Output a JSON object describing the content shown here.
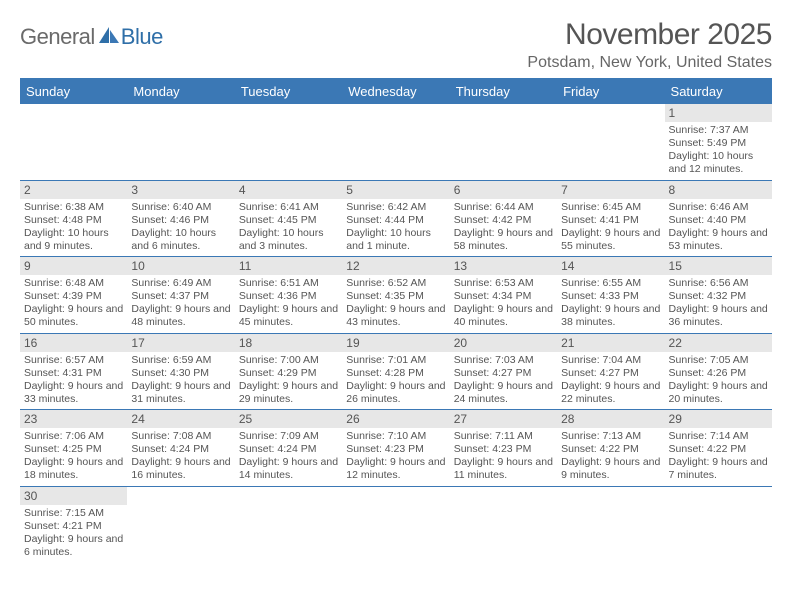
{
  "logo": {
    "word_a": "General",
    "word_b": "Blue"
  },
  "title": "November 2025",
  "subtitle": "Potsdam, New York, United States",
  "colors": {
    "header_bg": "#3b78b5",
    "daynum_bg": "#e7e7e7",
    "text": "#555555",
    "logo_gray": "#6a6a6a",
    "logo_blue": "#2f6fa8"
  },
  "typography": {
    "title_fontsize": 30,
    "subtitle_fontsize": 16,
    "header_fontsize": 13,
    "daynum_fontsize": 12,
    "body_fontsize": 10.5
  },
  "day_headers": [
    "Sunday",
    "Monday",
    "Tuesday",
    "Wednesday",
    "Thursday",
    "Friday",
    "Saturday"
  ],
  "weeks": [
    [
      {
        "n": "",
        "sr": "",
        "ss": "",
        "dl": ""
      },
      {
        "n": "",
        "sr": "",
        "ss": "",
        "dl": ""
      },
      {
        "n": "",
        "sr": "",
        "ss": "",
        "dl": ""
      },
      {
        "n": "",
        "sr": "",
        "ss": "",
        "dl": ""
      },
      {
        "n": "",
        "sr": "",
        "ss": "",
        "dl": ""
      },
      {
        "n": "",
        "sr": "",
        "ss": "",
        "dl": ""
      },
      {
        "n": "1",
        "sr": "Sunrise: 7:37 AM",
        "ss": "Sunset: 5:49 PM",
        "dl": "Daylight: 10 hours and 12 minutes."
      }
    ],
    [
      {
        "n": "2",
        "sr": "Sunrise: 6:38 AM",
        "ss": "Sunset: 4:48 PM",
        "dl": "Daylight: 10 hours and 9 minutes."
      },
      {
        "n": "3",
        "sr": "Sunrise: 6:40 AM",
        "ss": "Sunset: 4:46 PM",
        "dl": "Daylight: 10 hours and 6 minutes."
      },
      {
        "n": "4",
        "sr": "Sunrise: 6:41 AM",
        "ss": "Sunset: 4:45 PM",
        "dl": "Daylight: 10 hours and 3 minutes."
      },
      {
        "n": "5",
        "sr": "Sunrise: 6:42 AM",
        "ss": "Sunset: 4:44 PM",
        "dl": "Daylight: 10 hours and 1 minute."
      },
      {
        "n": "6",
        "sr": "Sunrise: 6:44 AM",
        "ss": "Sunset: 4:42 PM",
        "dl": "Daylight: 9 hours and 58 minutes."
      },
      {
        "n": "7",
        "sr": "Sunrise: 6:45 AM",
        "ss": "Sunset: 4:41 PM",
        "dl": "Daylight: 9 hours and 55 minutes."
      },
      {
        "n": "8",
        "sr": "Sunrise: 6:46 AM",
        "ss": "Sunset: 4:40 PM",
        "dl": "Daylight: 9 hours and 53 minutes."
      }
    ],
    [
      {
        "n": "9",
        "sr": "Sunrise: 6:48 AM",
        "ss": "Sunset: 4:39 PM",
        "dl": "Daylight: 9 hours and 50 minutes."
      },
      {
        "n": "10",
        "sr": "Sunrise: 6:49 AM",
        "ss": "Sunset: 4:37 PM",
        "dl": "Daylight: 9 hours and 48 minutes."
      },
      {
        "n": "11",
        "sr": "Sunrise: 6:51 AM",
        "ss": "Sunset: 4:36 PM",
        "dl": "Daylight: 9 hours and 45 minutes."
      },
      {
        "n": "12",
        "sr": "Sunrise: 6:52 AM",
        "ss": "Sunset: 4:35 PM",
        "dl": "Daylight: 9 hours and 43 minutes."
      },
      {
        "n": "13",
        "sr": "Sunrise: 6:53 AM",
        "ss": "Sunset: 4:34 PM",
        "dl": "Daylight: 9 hours and 40 minutes."
      },
      {
        "n": "14",
        "sr": "Sunrise: 6:55 AM",
        "ss": "Sunset: 4:33 PM",
        "dl": "Daylight: 9 hours and 38 minutes."
      },
      {
        "n": "15",
        "sr": "Sunrise: 6:56 AM",
        "ss": "Sunset: 4:32 PM",
        "dl": "Daylight: 9 hours and 36 minutes."
      }
    ],
    [
      {
        "n": "16",
        "sr": "Sunrise: 6:57 AM",
        "ss": "Sunset: 4:31 PM",
        "dl": "Daylight: 9 hours and 33 minutes."
      },
      {
        "n": "17",
        "sr": "Sunrise: 6:59 AM",
        "ss": "Sunset: 4:30 PM",
        "dl": "Daylight: 9 hours and 31 minutes."
      },
      {
        "n": "18",
        "sr": "Sunrise: 7:00 AM",
        "ss": "Sunset: 4:29 PM",
        "dl": "Daylight: 9 hours and 29 minutes."
      },
      {
        "n": "19",
        "sr": "Sunrise: 7:01 AM",
        "ss": "Sunset: 4:28 PM",
        "dl": "Daylight: 9 hours and 26 minutes."
      },
      {
        "n": "20",
        "sr": "Sunrise: 7:03 AM",
        "ss": "Sunset: 4:27 PM",
        "dl": "Daylight: 9 hours and 24 minutes."
      },
      {
        "n": "21",
        "sr": "Sunrise: 7:04 AM",
        "ss": "Sunset: 4:27 PM",
        "dl": "Daylight: 9 hours and 22 minutes."
      },
      {
        "n": "22",
        "sr": "Sunrise: 7:05 AM",
        "ss": "Sunset: 4:26 PM",
        "dl": "Daylight: 9 hours and 20 minutes."
      }
    ],
    [
      {
        "n": "23",
        "sr": "Sunrise: 7:06 AM",
        "ss": "Sunset: 4:25 PM",
        "dl": "Daylight: 9 hours and 18 minutes."
      },
      {
        "n": "24",
        "sr": "Sunrise: 7:08 AM",
        "ss": "Sunset: 4:24 PM",
        "dl": "Daylight: 9 hours and 16 minutes."
      },
      {
        "n": "25",
        "sr": "Sunrise: 7:09 AM",
        "ss": "Sunset: 4:24 PM",
        "dl": "Daylight: 9 hours and 14 minutes."
      },
      {
        "n": "26",
        "sr": "Sunrise: 7:10 AM",
        "ss": "Sunset: 4:23 PM",
        "dl": "Daylight: 9 hours and 12 minutes."
      },
      {
        "n": "27",
        "sr": "Sunrise: 7:11 AM",
        "ss": "Sunset: 4:23 PM",
        "dl": "Daylight: 9 hours and 11 minutes."
      },
      {
        "n": "28",
        "sr": "Sunrise: 7:13 AM",
        "ss": "Sunset: 4:22 PM",
        "dl": "Daylight: 9 hours and 9 minutes."
      },
      {
        "n": "29",
        "sr": "Sunrise: 7:14 AM",
        "ss": "Sunset: 4:22 PM",
        "dl": "Daylight: 9 hours and 7 minutes."
      }
    ],
    [
      {
        "n": "30",
        "sr": "Sunrise: 7:15 AM",
        "ss": "Sunset: 4:21 PM",
        "dl": "Daylight: 9 hours and 6 minutes."
      },
      {
        "n": "",
        "sr": "",
        "ss": "",
        "dl": ""
      },
      {
        "n": "",
        "sr": "",
        "ss": "",
        "dl": ""
      },
      {
        "n": "",
        "sr": "",
        "ss": "",
        "dl": ""
      },
      {
        "n": "",
        "sr": "",
        "ss": "",
        "dl": ""
      },
      {
        "n": "",
        "sr": "",
        "ss": "",
        "dl": ""
      },
      {
        "n": "",
        "sr": "",
        "ss": "",
        "dl": ""
      }
    ]
  ]
}
